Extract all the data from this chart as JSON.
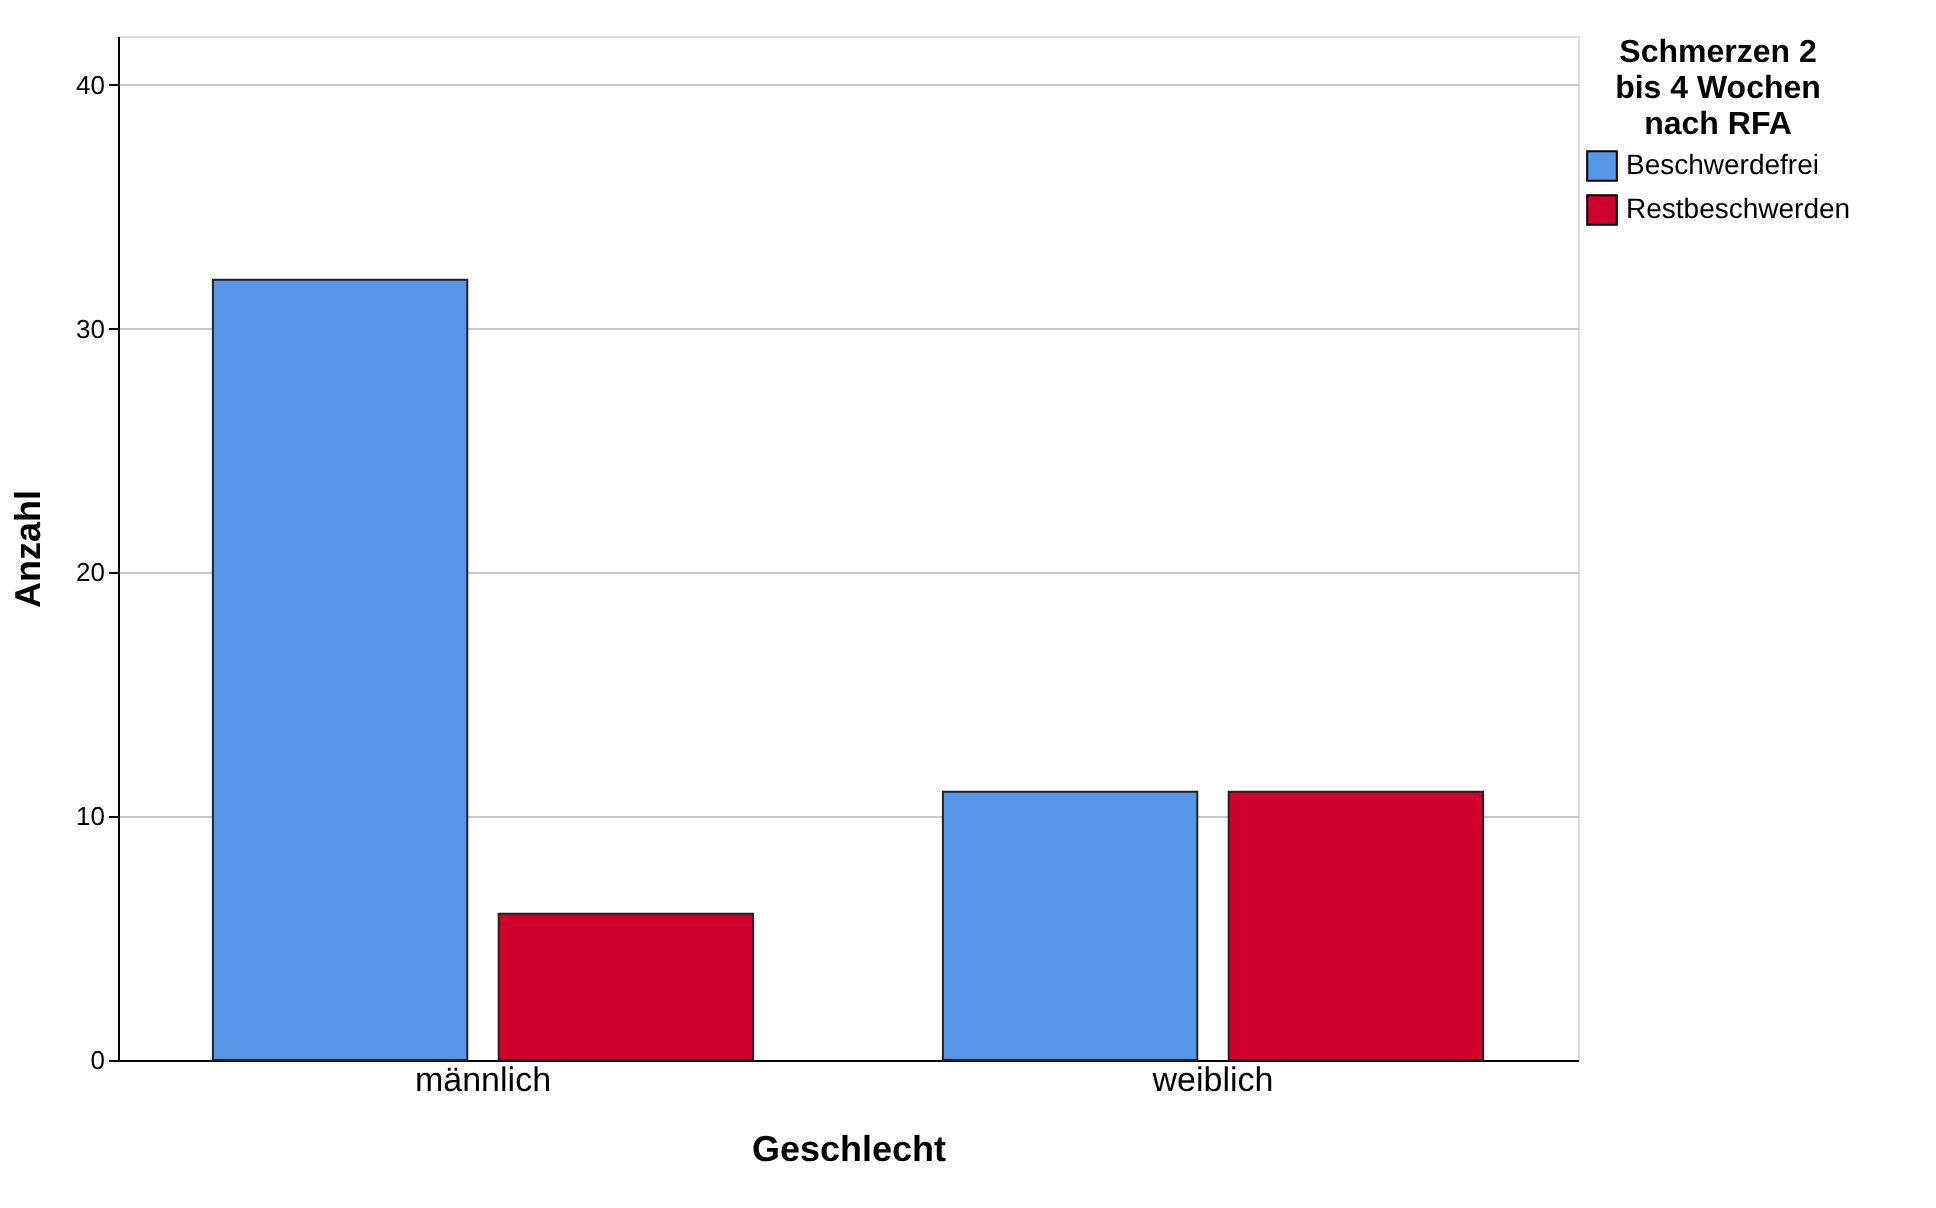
{
  "chart_data": {
    "type": "bar",
    "xlabel": "Geschlecht",
    "ylabel": "Anzahl",
    "legend_title": "Schmerzen 2 bis 4 Wochen nach RFA",
    "categories": [
      "männlich",
      "weiblich"
    ],
    "series": [
      {
        "name": "Beschwerdefrei",
        "color": "#5596e6",
        "values": [
          32,
          11
        ]
      },
      {
        "name": "Restbeschwerden",
        "color": "#d2002c",
        "values": [
          6,
          11
        ]
      }
    ],
    "ylim": [
      0,
      42
    ],
    "yticks": [
      0,
      10,
      20,
      30,
      40
    ],
    "grid": "y",
    "legend": "top right"
  }
}
